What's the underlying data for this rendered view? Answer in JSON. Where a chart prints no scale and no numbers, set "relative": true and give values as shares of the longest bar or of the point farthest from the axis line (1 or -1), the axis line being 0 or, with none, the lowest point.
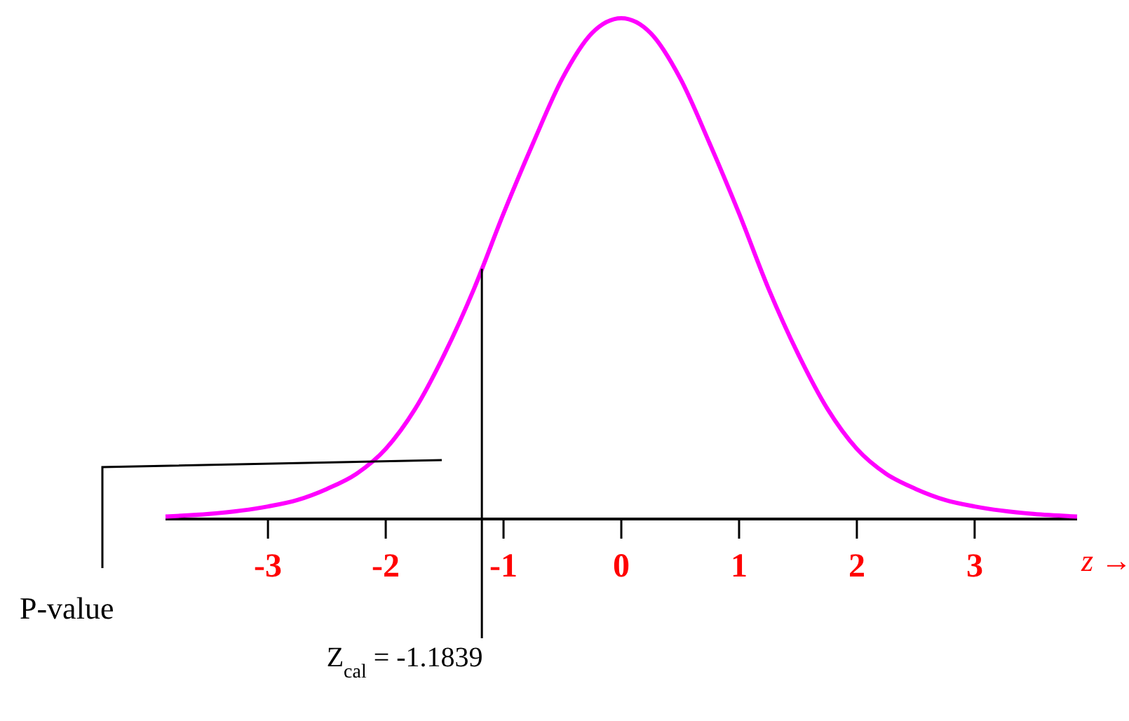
{
  "chart_data": {
    "type": "line",
    "relative": true,
    "xlabel": "z →",
    "tick_labels": "x",
    "x": [
      -3.87,
      -3.5,
      -3,
      -2.75,
      -2.5,
      -2.25,
      -2,
      -1.75,
      -1.5,
      -1.25,
      -1,
      -0.75,
      -0.5,
      -0.25,
      0,
      0.25,
      0.5,
      0.75,
      1,
      1.25,
      1.5,
      1.75,
      2,
      2.25,
      2.5,
      2.75,
      3,
      3.5,
      3.87
    ],
    "series": [
      {
        "color": "#ff00ff",
        "values": [
          0.005,
          0.01,
          0.025,
          0.038,
          0.06,
          0.09,
          0.14,
          0.22,
          0.33,
          0.46,
          0.61,
          0.75,
          0.88,
          0.97,
          1,
          0.97,
          0.88,
          0.75,
          0.61,
          0.46,
          0.33,
          0.22,
          0.14,
          0.09,
          0.06,
          0.038,
          0.025,
          0.01,
          0.005
        ]
      }
    ],
    "xlim": [
      -3.87,
      3.87
    ],
    "xticks": [
      -3,
      -2,
      -1,
      0,
      1,
      2,
      3
    ],
    "ref_lines": [
      {
        "axis": "x",
        "value": -1.1839,
        "label": "Z$_{cal}$ = -1.1839",
        "color": "#000000"
      }
    ],
    "annotations": [
      "P-value"
    ]
  }
}
